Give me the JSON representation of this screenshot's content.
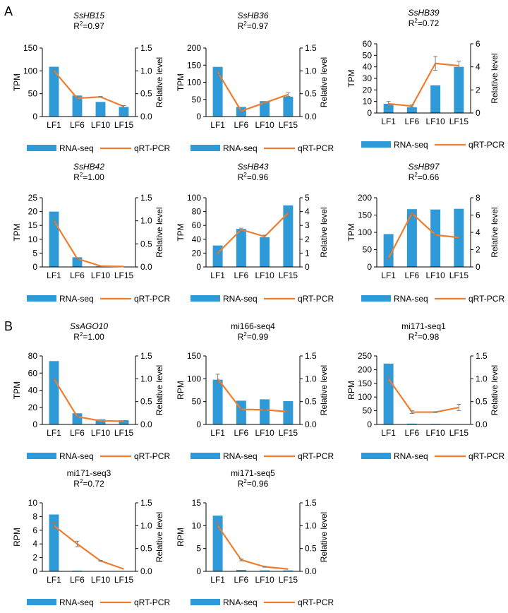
{
  "panels": [
    {
      "label": "A"
    },
    {
      "label": "B"
    }
  ],
  "legend": {
    "bar_label": "RNA-seq",
    "line_label": "qRT-PCR"
  },
  "colors": {
    "bar": "#2e9bd8",
    "line": "#f07d2e",
    "axis": "#000000",
    "error": "#808080"
  },
  "chart_data": [
    {
      "panel": "A",
      "type": "bar",
      "title": "SsHB15",
      "title_italic": true,
      "r2": "R2=0.97",
      "categories": [
        "LF1",
        "LF6",
        "LF10",
        "LF15"
      ],
      "series": [
        {
          "name": "RNA-seq",
          "axis": "left",
          "values": [
            109,
            46,
            32,
            21
          ]
        },
        {
          "name": "qRT-PCR",
          "axis": "right",
          "values": [
            1.0,
            0.4,
            0.43,
            0.22
          ],
          "errors": [
            0.04,
            0.02,
            0.01,
            0.02
          ]
        }
      ],
      "ylabel": "TPM",
      "ylim": [
        0,
        150
      ],
      "yticks": [
        "0",
        "50",
        "100",
        "150"
      ],
      "y2label": "Relative level",
      "y2lim": [
        0,
        1.5
      ],
      "y2ticks": [
        "0.0",
        "0.5",
        "1.0",
        "1.5"
      ]
    },
    {
      "panel": "A",
      "type": "bar",
      "title": "SsHB36",
      "title_italic": true,
      "r2": "R2=0.97",
      "categories": [
        "LF1",
        "LF6",
        "LF10",
        "LF15"
      ],
      "series": [
        {
          "name": "RNA-seq",
          "axis": "left",
          "values": [
            145,
            28,
            45,
            58
          ]
        },
        {
          "name": "qRT-PCR",
          "axis": "right",
          "values": [
            0.97,
            0.12,
            0.3,
            0.48
          ],
          "errors": [
            0.05,
            0.02,
            0.02,
            0.04
          ]
        }
      ],
      "ylabel": "TPM",
      "ylim": [
        0,
        200
      ],
      "yticks": [
        "0",
        "50",
        "100",
        "150",
        "200"
      ],
      "y2label": "Relative level",
      "y2lim": [
        0,
        1.5
      ],
      "y2ticks": [
        "0.0",
        "0.5",
        "1.0",
        "1.5"
      ]
    },
    {
      "panel": "A",
      "type": "bar",
      "title": "SsHB39",
      "title_italic": true,
      "r2": "R2=0.72",
      "categories": [
        "LF1",
        "LF6",
        "LF10",
        "LF15"
      ],
      "series": [
        {
          "name": "RNA-seq",
          "axis": "left",
          "values": [
            8,
            5,
            24,
            40
          ]
        },
        {
          "name": "qRT-PCR",
          "axis": "right",
          "values": [
            0.8,
            0.6,
            4.3,
            4.1
          ],
          "errors": [
            0.2,
            0.1,
            0.6,
            0.4
          ]
        }
      ],
      "ylabel": "TPM",
      "ylim": [
        0,
        60
      ],
      "yticks": [
        "0",
        "10",
        "20",
        "30",
        "40",
        "50",
        "60"
      ],
      "y2label": "Relative level",
      "y2lim": [
        0,
        6
      ],
      "y2ticks": [
        "0",
        "2",
        "4",
        "6"
      ]
    },
    {
      "panel": "A",
      "type": "bar",
      "title": "SsHB42",
      "title_italic": true,
      "r2": "R2=1.00",
      "categories": [
        "LF1",
        "LF6",
        "LF10",
        "LF15"
      ],
      "series": [
        {
          "name": "RNA-seq",
          "axis": "left",
          "values": [
            20,
            3.5,
            0.2,
            0.1
          ]
        },
        {
          "name": "qRT-PCR",
          "axis": "right",
          "values": [
            1.0,
            0.18,
            0.02,
            0.01
          ],
          "errors": [
            0.05,
            0.01,
            0.0,
            0.0
          ]
        }
      ],
      "ylabel": "TPM",
      "ylim": [
        0,
        25
      ],
      "yticks": [
        "0",
        "5",
        "10",
        "15",
        "20",
        "25"
      ],
      "y2label": "Relative level",
      "y2lim": [
        0,
        1.5
      ],
      "y2ticks": [
        "0.0",
        "0.5",
        "1.0",
        "1.5"
      ]
    },
    {
      "panel": "A",
      "type": "bar",
      "title": "SsHB43",
      "title_italic": true,
      "r2": "R2=0.96",
      "categories": [
        "LF1",
        "LF6",
        "LF10",
        "LF15"
      ],
      "series": [
        {
          "name": "RNA-seq",
          "axis": "left",
          "values": [
            31,
            55,
            43,
            89
          ]
        },
        {
          "name": "qRT-PCR",
          "axis": "right",
          "values": [
            1.0,
            2.7,
            2.2,
            3.9
          ],
          "errors": [
            0.1,
            0.1,
            0.1,
            0.2
          ]
        }
      ],
      "ylabel": "TPM",
      "ylim": [
        0,
        100
      ],
      "yticks": [
        "0",
        "20",
        "40",
        "60",
        "80",
        "100"
      ],
      "y2label": "Relative level",
      "y2lim": [
        0,
        5
      ],
      "y2ticks": [
        "0",
        "1",
        "2",
        "3",
        "4",
        "5"
      ]
    },
    {
      "panel": "A",
      "type": "bar",
      "title": "SsHB97",
      "title_italic": true,
      "r2": "R2=0.66",
      "categories": [
        "LF1",
        "LF6",
        "LF10",
        "LF15"
      ],
      "series": [
        {
          "name": "RNA-seq",
          "axis": "left",
          "values": [
            95,
            167,
            166,
            168
          ]
        },
        {
          "name": "qRT-PCR",
          "axis": "right",
          "values": [
            1.0,
            6.2,
            3.7,
            3.4
          ],
          "errors": [
            0.05,
            0.1,
            0.1,
            0.1
          ]
        }
      ],
      "ylabel": "TPM",
      "ylim": [
        0,
        200
      ],
      "yticks": [
        "0",
        "50",
        "100",
        "150",
        "200"
      ],
      "y2label": "Relative level",
      "y2lim": [
        0,
        8
      ],
      "y2ticks": [
        "0",
        "2",
        "4",
        "6",
        "8"
      ]
    },
    {
      "panel": "B",
      "type": "bar",
      "title": "SsAGO10",
      "title_italic": true,
      "r2": "R2=1.00",
      "categories": [
        "LF1",
        "LF6",
        "LF10",
        "LF15"
      ],
      "series": [
        {
          "name": "RNA-seq",
          "axis": "left",
          "values": [
            74,
            13,
            6,
            5
          ]
        },
        {
          "name": "qRT-PCR",
          "axis": "right",
          "values": [
            1.0,
            0.17,
            0.08,
            0.07
          ],
          "errors": [
            0.02,
            0.01,
            0.0,
            0.0
          ]
        }
      ],
      "ylabel": "TPM",
      "ylim": [
        0,
        80
      ],
      "yticks": [
        "0",
        "20",
        "40",
        "60",
        "80"
      ],
      "y2label": "Relative level",
      "y2lim": [
        0,
        1.5
      ],
      "y2ticks": [
        "0.0",
        "0.5",
        "1.0",
        "1.5"
      ]
    },
    {
      "panel": "B",
      "type": "bar",
      "title": "mi166-seq4",
      "title_italic": false,
      "r2": "R2=0.99",
      "categories": [
        "LF1",
        "LF6",
        "LF10",
        "LF15"
      ],
      "series": [
        {
          "name": "RNA-seq",
          "axis": "left",
          "values": [
            98,
            52,
            55,
            51
          ]
        },
        {
          "name": "qRT-PCR",
          "axis": "right",
          "values": [
            1.0,
            0.33,
            0.32,
            0.28
          ],
          "errors": [
            0.1,
            0.02,
            0.01,
            0.01
          ]
        }
      ],
      "ylabel": "RPM",
      "ylim": [
        0,
        150
      ],
      "yticks": [
        "0",
        "50",
        "100",
        "150"
      ],
      "y2label": "Relative level",
      "y2lim": [
        0,
        1.5
      ],
      "y2ticks": [
        "0.0",
        "0.5",
        "1.0",
        "1.5"
      ]
    },
    {
      "panel": "B",
      "type": "bar",
      "title": "mi171-seq1",
      "title_italic": false,
      "r2": "R2=0.98",
      "categories": [
        "LF1",
        "LF6",
        "LF10",
        "LF15"
      ],
      "series": [
        {
          "name": "RNA-seq",
          "axis": "left",
          "values": [
            222,
            3,
            2,
            1
          ]
        },
        {
          "name": "qRT-PCR",
          "axis": "right",
          "values": [
            1.0,
            0.27,
            0.27,
            0.37
          ],
          "errors": [
            0.08,
            0.03,
            0.01,
            0.07
          ]
        }
      ],
      "ylabel": "RPM",
      "ylim": [
        0,
        250
      ],
      "yticks": [
        "0",
        "50",
        "100",
        "150",
        "200",
        "250"
      ],
      "y2label": "Relative level",
      "y2lim": [
        0,
        1.5
      ],
      "y2ticks": [
        "0.0",
        "0.5",
        "1.0",
        "1.5"
      ]
    },
    {
      "panel": "B",
      "type": "bar",
      "title": "mi171-seq3",
      "title_italic": false,
      "r2": "R2=0.72",
      "categories": [
        "LF1",
        "LF6",
        "LF10",
        "LF15"
      ],
      "series": [
        {
          "name": "RNA-seq",
          "axis": "left",
          "values": [
            8.3,
            0.1,
            0.05,
            0.05
          ]
        },
        {
          "name": "qRT-PCR",
          "axis": "right",
          "values": [
            1.0,
            0.6,
            0.23,
            0.05
          ],
          "errors": [
            0.06,
            0.06,
            0.01,
            0.0
          ]
        }
      ],
      "ylabel": "RPM",
      "ylim": [
        0,
        10
      ],
      "yticks": [
        "0",
        "2",
        "4",
        "6",
        "8",
        "10"
      ],
      "y2label": "Relative level",
      "y2lim": [
        0,
        1.5
      ],
      "y2ticks": [
        "0.0",
        "0.5",
        "1.0",
        "1.5"
      ]
    },
    {
      "panel": "B",
      "type": "bar",
      "title": "mi171-seq5",
      "title_italic": false,
      "r2": "R2=0.96",
      "categories": [
        "LF1",
        "LF6",
        "LF10",
        "LF15"
      ],
      "series": [
        {
          "name": "RNA-seq",
          "axis": "left",
          "values": [
            12.2,
            0.3,
            0.2,
            0.2
          ]
        },
        {
          "name": "qRT-PCR",
          "axis": "right",
          "values": [
            1.0,
            0.25,
            0.1,
            0.05
          ],
          "errors": [
            0.06,
            0.02,
            0.01,
            0.0
          ]
        }
      ],
      "ylabel": "RPM",
      "ylim": [
        0,
        15
      ],
      "yticks": [
        "0",
        "5",
        "10",
        "15"
      ],
      "y2label": "Relative level",
      "y2lim": [
        0,
        1.5
      ],
      "y2ticks": [
        "0.0",
        "0.5",
        "1.0",
        "1.5"
      ]
    }
  ]
}
